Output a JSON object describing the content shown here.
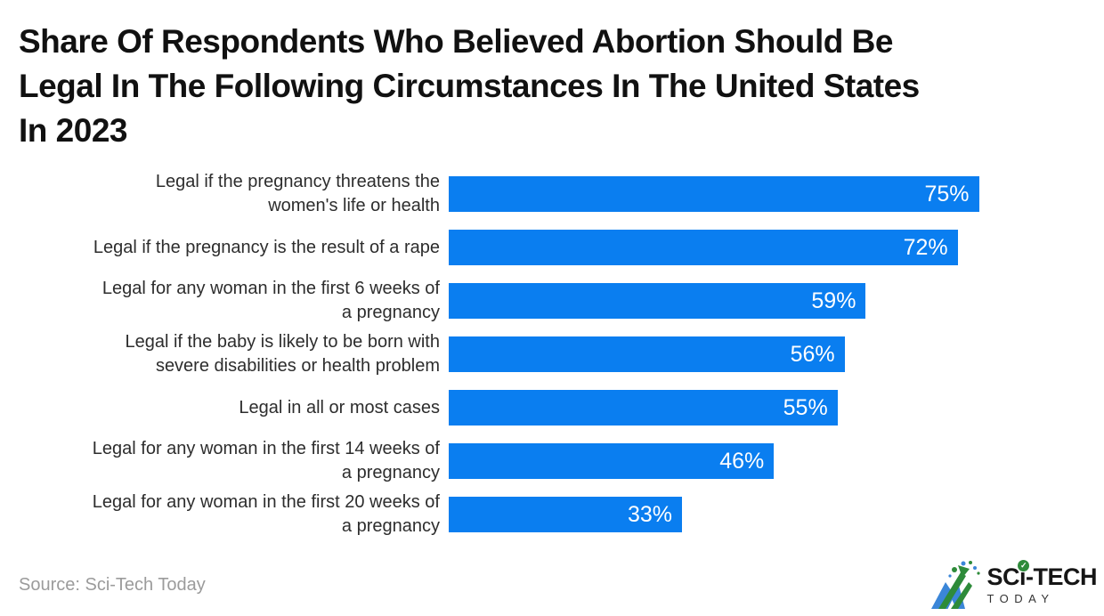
{
  "title": "Share Of Respondents Who Believed Abortion Should Be Legal In The Following Circumstances In The United States In 2023",
  "title_lines": "Share Of Respondents Who Believed Abortion Should Be\nLegal In The Following Circumstances In The United States\nIn 2023",
  "source_text": "Source: Sci-Tech Today",
  "colors": {
    "bar": "#0a7ef0",
    "title_text": "#111111",
    "category_text": "#2d2d2d",
    "value_text": "#ffffff",
    "source_text": "#9b9b9b",
    "logo_green": "#2e8b3a",
    "logo_blue": "#3b86d8",
    "logo_text": "#161616"
  },
  "logo": {
    "mark_icon": "mountain-arrow-logo-icon",
    "text_sc": "SC",
    "text_i": "i",
    "check_glyph": "✓",
    "text_tech": "-TECH",
    "text_today": "TODAY"
  },
  "chart_data": {
    "type": "bar",
    "orientation": "horizontal",
    "title": "Share Of Respondents Who Believed Abortion Should Be Legal In The Following Circumstances In The United States In 2023",
    "xlabel": "",
    "ylabel": "",
    "unit": "%",
    "grid": false,
    "legend": false,
    "value_axis_visible": false,
    "bar_color": "#0a7ef0",
    "categories": [
      "Legal if the pregnancy threatens the women's life or health",
      "Legal if the pregnancy is the result of a rape",
      "Legal for any woman in the first 6 weeks of a pregnancy",
      "Legal if the baby is likely to be born with severe disabilities or health problem",
      "Legal in all or most cases",
      "Legal for any woman in the first 14 weeks of a pregnancy",
      "Legal for any woman in the first 20 weeks of a pregnancy"
    ],
    "category_lines": [
      [
        "Legal if the pregnancy threatens the",
        "women's life or health"
      ],
      [
        "Legal if the pregnancy is the result of a rape"
      ],
      [
        "Legal for any woman in the first 6 weeks of",
        "a pregnancy"
      ],
      [
        "Legal if the baby is likely to be born with",
        "severe disabilities or health problem"
      ],
      [
        "Legal in all or most cases"
      ],
      [
        "Legal for any woman in the first 14 weeks of",
        "a pregnancy"
      ],
      [
        "Legal for any woman in the first 20 weeks of",
        "a pregnancy"
      ]
    ],
    "values": [
      75,
      72,
      59,
      56,
      55,
      46,
      33
    ],
    "value_labels": [
      "75%",
      "72%",
      "59%",
      "56%",
      "55%",
      "46%",
      "33%"
    ]
  }
}
